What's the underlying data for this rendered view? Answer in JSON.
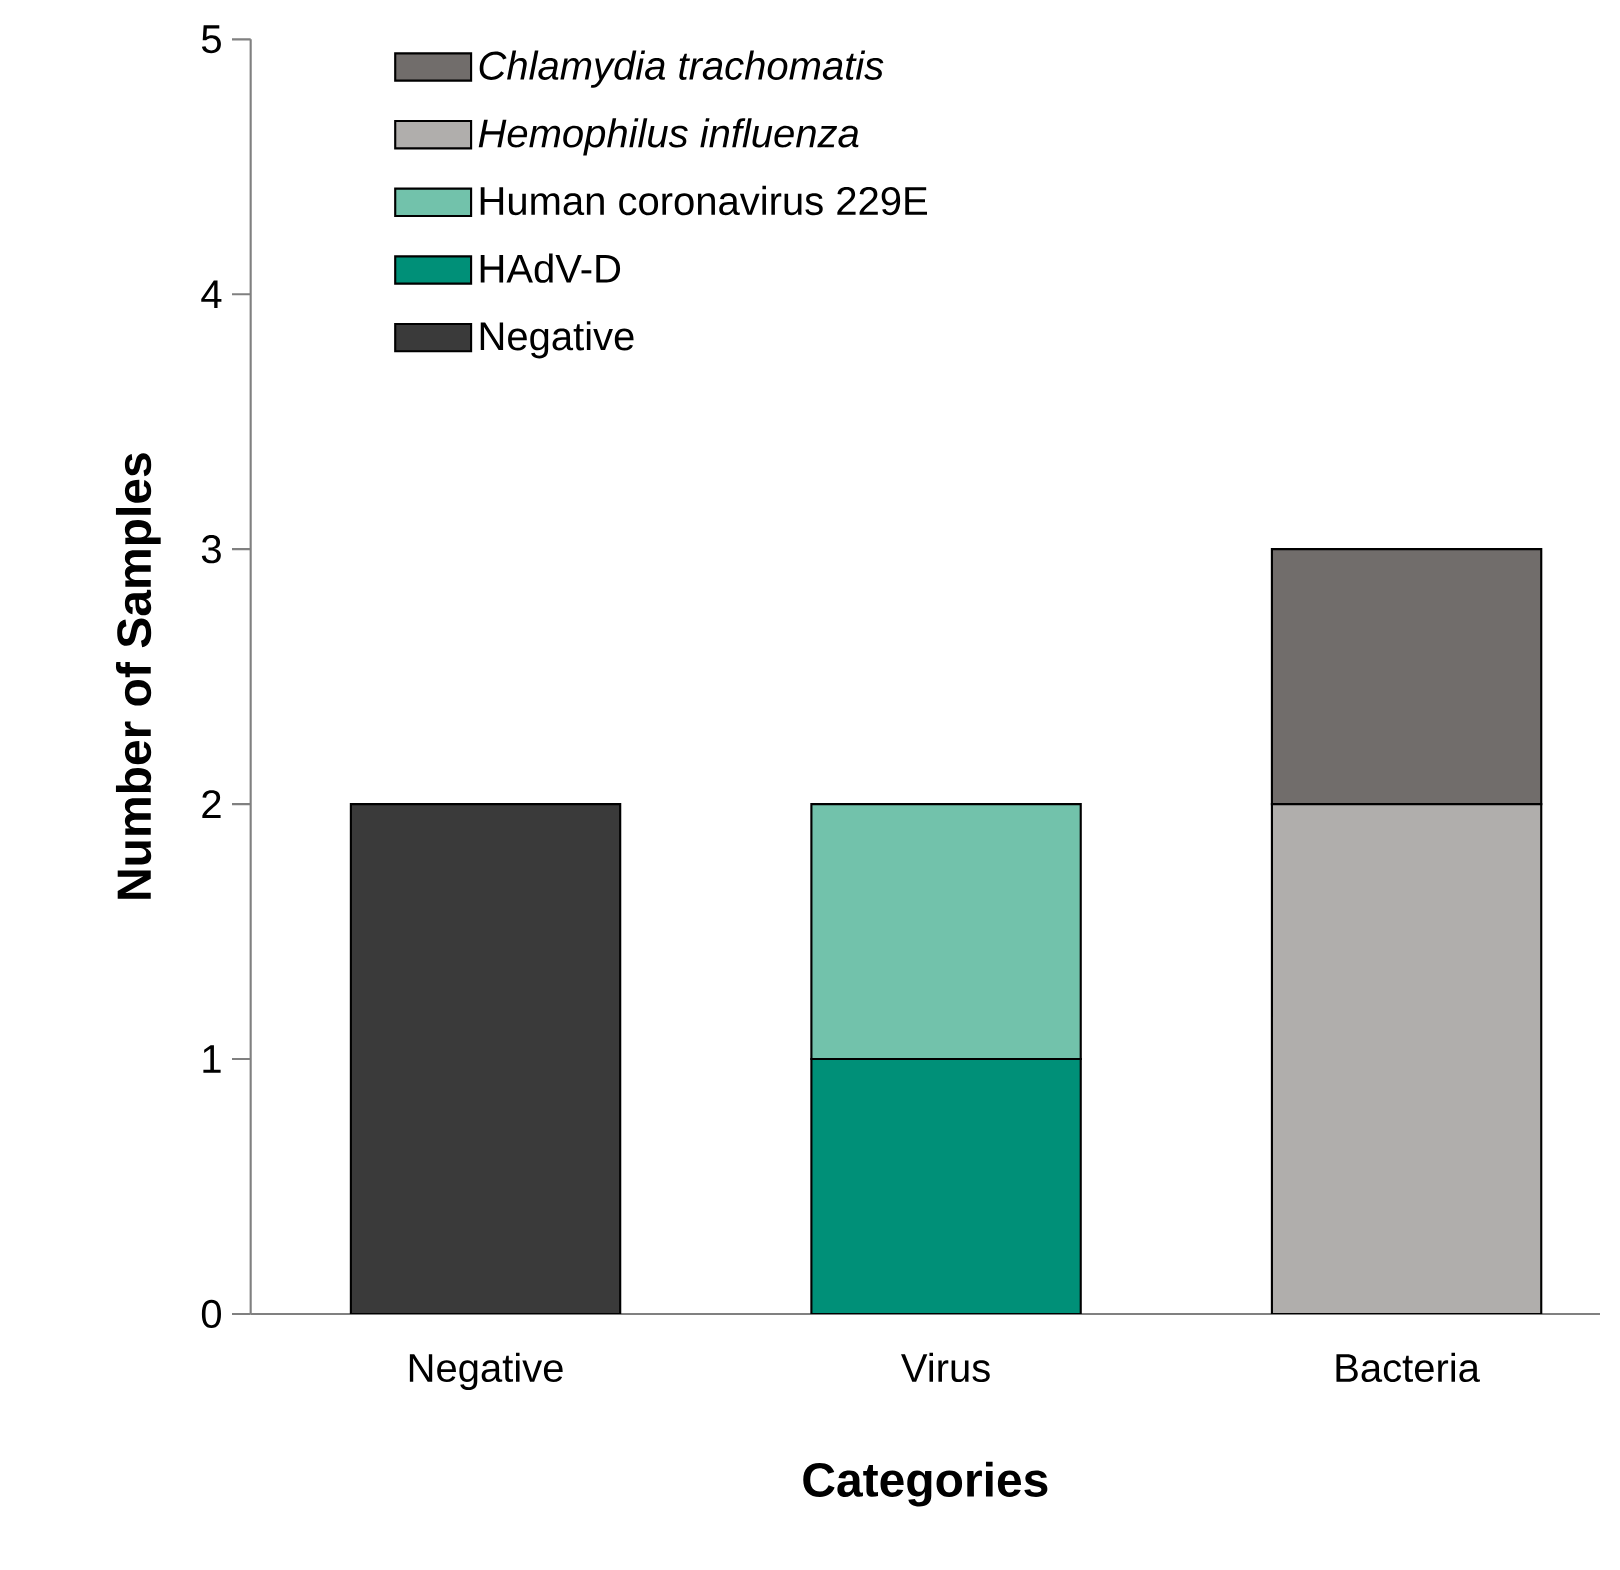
{
  "chart_data": {
    "type": "bar",
    "stacked": true,
    "xlabel": "Categories",
    "ylabel": "Number of Samples",
    "categories": [
      "Negative",
      "Virus",
      "Bacteria"
    ],
    "series": [
      {
        "name": "Negative",
        "color": "#3a3a3a",
        "values": [
          2,
          0,
          0
        ]
      },
      {
        "name": "HAdV-D",
        "color": "#009078",
        "values": [
          0,
          1,
          0
        ]
      },
      {
        "name": "Human coronavirus  229E",
        "color": "#72c2ab",
        "values": [
          0,
          1,
          0
        ]
      },
      {
        "name": "*Hemophilus influenza*",
        "color": "#b0aeac",
        "values": [
          0,
          0,
          2
        ]
      },
      {
        "name": "*Chlamydia trachomatis*",
        "color": "#716d6b",
        "values": [
          0,
          0,
          1
        ]
      }
    ],
    "ylim": [
      0,
      5
    ],
    "yticks": [
      0,
      1,
      2,
      3,
      4,
      5
    ],
    "grid": false,
    "legend": "top left"
  }
}
